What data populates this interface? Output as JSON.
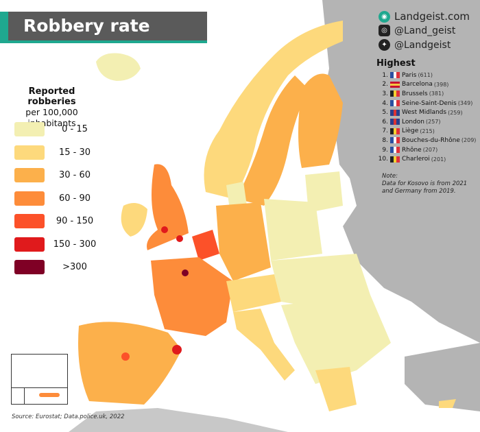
{
  "title": "Robbery rate",
  "social": {
    "website": "Landgeist.com",
    "instagram": "@Land_geist",
    "twitter": "@Landgeist"
  },
  "legend": {
    "title": "Reported robberies",
    "subtitle_line1": "per 100,000",
    "subtitle_line2": "inhabitants",
    "classes": [
      {
        "label": "0  -  15",
        "color": "#f3efb2"
      },
      {
        "label": "15  -  30",
        "color": "#fdd97c"
      },
      {
        "label": "30  -  60",
        "color": "#fcb04b"
      },
      {
        "label": "60  -  90",
        "color": "#fd8c3a"
      },
      {
        "label": "90  - 150",
        "color": "#fc5129"
      },
      {
        "label": "150 - 300",
        "color": "#e01a1c"
      },
      {
        "label": ">300",
        "color": "#7f0025"
      }
    ]
  },
  "highest": {
    "title": "Highest",
    "items": [
      {
        "rank": "1.",
        "name": "Paris",
        "value": "(611)",
        "country": "France"
      },
      {
        "rank": "2.",
        "name": "Barcelona",
        "value": "(398)",
        "country": "Spain"
      },
      {
        "rank": "3.",
        "name": "Brussels",
        "value": "(381)",
        "country": "Belgium"
      },
      {
        "rank": "4.",
        "name": "Seine-Saint-Denis",
        "value": "(349)",
        "country": "France"
      },
      {
        "rank": "5.",
        "name": "West Midlands",
        "value": "(259)",
        "country": "UK"
      },
      {
        "rank": "6.",
        "name": "London",
        "value": "(257)",
        "country": "UK"
      },
      {
        "rank": "7.",
        "name": "Liège",
        "value": "(215)",
        "country": "Belgium"
      },
      {
        "rank": "8.",
        "name": "Bouches-du-Rhône",
        "value": "(209)",
        "country": "France"
      },
      {
        "rank": "9.",
        "name": "Rhône",
        "value": "(207)",
        "country": "France"
      },
      {
        "rank": "10.",
        "name": "Charleroi",
        "value": "(201)",
        "country": "Belgium"
      }
    ]
  },
  "note": {
    "label": "Note:",
    "line1": "Data for Kosovo is from 2021",
    "line2": "and Germany from 2019."
  },
  "source": "Source: Eurostat; Data.police.uk, 2022",
  "colors": {
    "no_data": "#b4b4b4",
    "sea": "#ffffff",
    "accent": "#1fa88f",
    "banner": "#5a5a5a"
  }
}
